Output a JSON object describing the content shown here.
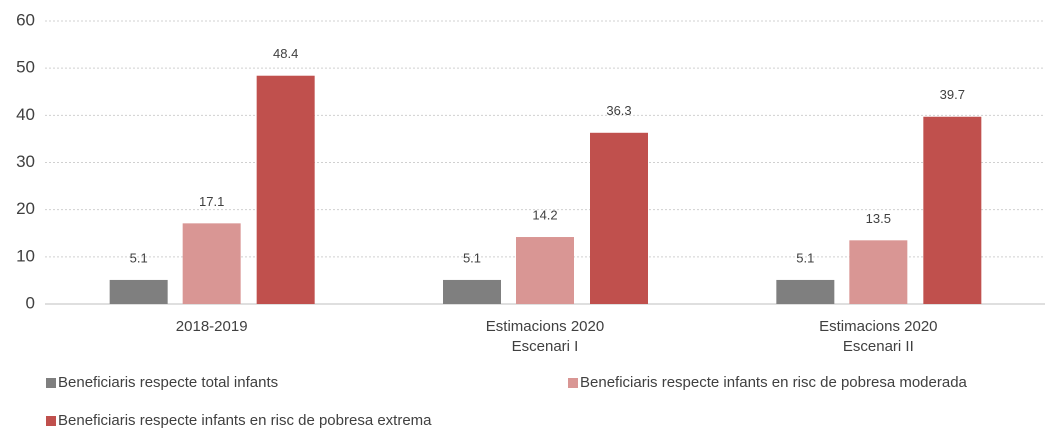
{
  "chart_data": {
    "type": "bar",
    "categories": [
      [
        "2018-2019"
      ],
      [
        "Estimacions 2020",
        "Escenari I"
      ],
      [
        "Estimacions 2020",
        "Escenari II"
      ]
    ],
    "series": [
      {
        "name": "Beneficiaris respecte total infants",
        "color": "#7f7f7f",
        "values": [
          5.1,
          5.1,
          5.1
        ]
      },
      {
        "name": "Beneficiaris respecte infants en risc de pobresa moderada",
        "color": "#d99694",
        "values": [
          17.1,
          14.2,
          13.5
        ]
      },
      {
        "name": "Beneficiaris respecte infants en risc de pobresa extrema",
        "color": "#c0504d",
        "values": [
          48.4,
          36.3,
          39.7
        ]
      }
    ],
    "ylim": [
      0,
      60
    ],
    "yticks": [
      0,
      10,
      20,
      30,
      40,
      50,
      60
    ],
    "grid": true,
    "legend": "bottom"
  }
}
